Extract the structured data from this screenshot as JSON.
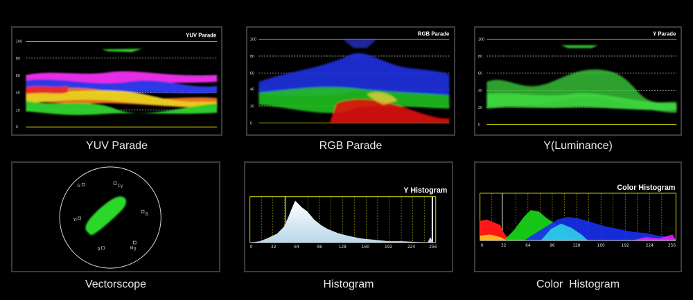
{
  "panels": {
    "yuv": {
      "title": "YUV Parade",
      "caption": "YUV Parade",
      "scale": [
        "100",
        "80",
        "60",
        "40",
        "20",
        "0"
      ]
    },
    "rgb": {
      "title": "RGB Parade",
      "caption": "RGB Parade",
      "scale": [
        "100",
        "80",
        "60",
        "40",
        "20",
        "0"
      ]
    },
    "luma": {
      "title": "Y Parade",
      "caption": "Y(Luminance)",
      "scale": [
        "100",
        "80",
        "60",
        "40",
        "20",
        "0"
      ]
    },
    "vectorscope": {
      "caption": "Vectorscope",
      "targets": [
        "G",
        "Cy",
        "B",
        "Mg",
        "R",
        "Yl"
      ]
    },
    "y_histogram": {
      "title": "Y Histogram",
      "caption": "Histogram",
      "axis": [
        "0",
        "32",
        "64",
        "96",
        "128",
        "160",
        "192",
        "224",
        "256"
      ]
    },
    "color_histogram": {
      "title": "Color Histogram",
      "caption": "Color  Histogram",
      "axis": [
        "0",
        "32",
        "64",
        "96",
        "128",
        "160",
        "192",
        "224",
        "256"
      ]
    }
  },
  "colors": {
    "scale_line": "#e6e600",
    "luma_trace": "#3dd63d",
    "red": "#ff2020",
    "green": "#20d020",
    "blue": "#2040ff"
  }
}
